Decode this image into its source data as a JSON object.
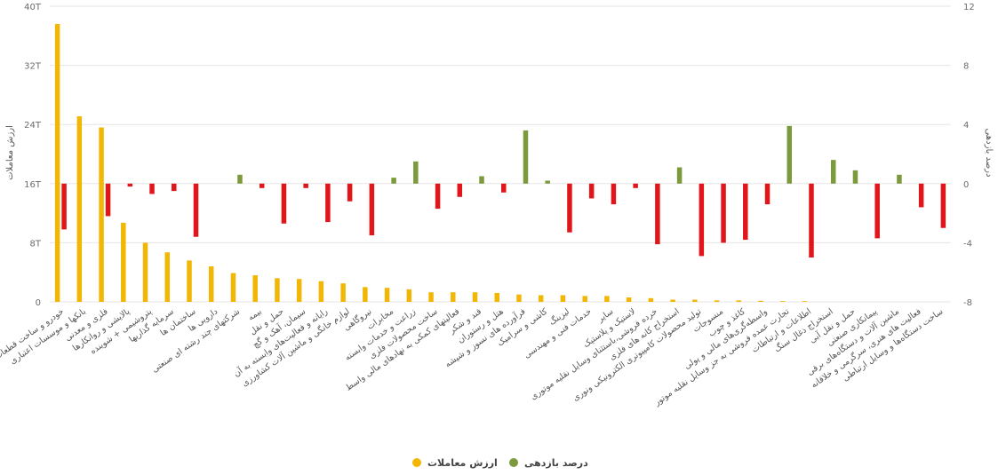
{
  "chart_data": {
    "type": "bar",
    "left_axis": {
      "title": "ارزش معاملات",
      "min": 0,
      "max": 40,
      "ticks": [
        0,
        8,
        16,
        24,
        32,
        40
      ],
      "tick_labels": [
        "0",
        "8T",
        "16T",
        "24T",
        "32T",
        "40T"
      ]
    },
    "right_axis": {
      "title": "درصد بازدهی",
      "min": -8,
      "max": 12,
      "ticks": [
        -8,
        -4,
        0,
        4,
        8,
        12
      ],
      "tick_labels": [
        "-8",
        "-4",
        "0",
        "4",
        "8",
        "12"
      ]
    },
    "grid": true,
    "legend_position": "bottom-center",
    "categories": [
      "خودرو و ساخت قطعات",
      "بانکها و موسسات اعتباری",
      "فلزی و معدنی",
      "پالایشی و روانکارها",
      "پتروشیمی + شوینده",
      "سرمایه گذاریها",
      "ساختمان ها",
      "دارویی ها",
      "شرکتهای چند رشته ای صنعتی",
      "بیمه",
      "حمل و نقل",
      "سیمان، آهک و گچ",
      "رایانه و فعالیت‌های وابسته به آن",
      "لوازم خانگی و ماشین آلات کشاورزی",
      "نیروگاهی",
      "مخابرات",
      "زراعت و خدمات وابسته",
      "ساخت محصولات فلزی",
      "فعالیتهای کمکی به نهادهای مالی واسط",
      "قند و شکر",
      "هتل و رستوران",
      "فرآورده های نسوز و شیشه",
      "کاشی و سرامیک",
      "لیزینگ",
      "خدمات فنی و مهندسی",
      "سایر",
      "لاستیک و پلاستیک",
      "خرده فروشی،باستثنای وسایل نقلیه موتوری",
      "استخراج کانه های فلزی",
      "تولید محصولات کامپیوتری الکترونیکی ونوری",
      "منسوجات",
      "کاغذ و چوب",
      "واسطه‌گری‌های مالی و پولی",
      "تجارت عمده فروشی به جز وسایل نقلیه موتور",
      "اطلاعات و ارتباطات",
      "استخراج ذغال سنگ",
      "حمل و نقل آبی",
      "پیمانکاری صنعتی",
      "ماشین آلات و دستگاه‌های برقی",
      "فعالیت های هنری، سرگرمی و خلاقانه",
      "ساخت دستگاه‌ها و وسایل ارتباطی"
    ],
    "series": [
      {
        "name": "ارزش معاملات",
        "axis": "left",
        "color": "#f2b705",
        "unit": "T",
        "values": [
          37.6,
          25.1,
          23.6,
          10.7,
          8.0,
          6.7,
          5.6,
          4.8,
          3.9,
          3.6,
          3.2,
          3.1,
          2.8,
          2.5,
          2.0,
          1.9,
          1.7,
          1.3,
          1.3,
          1.3,
          1.2,
          1.0,
          0.9,
          0.9,
          0.8,
          0.8,
          0.6,
          0.5,
          0.3,
          0.3,
          0.2,
          0.2,
          0.15,
          0.1,
          0.1,
          0,
          0,
          0,
          0,
          0,
          0
        ]
      },
      {
        "name": "درصد بازدهی",
        "axis": "right",
        "color_positive": "#7a9a3c",
        "color_negative": "#e0161b",
        "values": [
          -3.1,
          null,
          -2.2,
          -0.2,
          -0.7,
          -0.5,
          -3.6,
          null,
          0.6,
          -0.3,
          -2.7,
          -0.3,
          -2.6,
          -1.2,
          -3.5,
          0.4,
          1.5,
          -1.7,
          -0.9,
          0.5,
          -0.6,
          3.6,
          0.2,
          -3.3,
          -1.0,
          -1.4,
          -0.3,
          -4.1,
          1.1,
          -4.9,
          -4.0,
          -3.8,
          -1.4,
          3.9,
          -5.0,
          1.6,
          0.9,
          -3.7,
          0.6,
          -1.6,
          -3.0
        ]
      }
    ]
  }
}
